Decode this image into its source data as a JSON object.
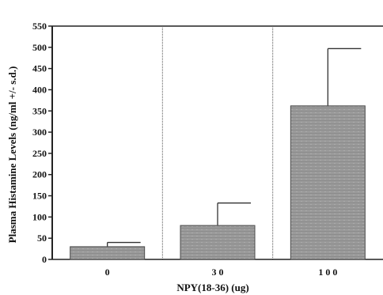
{
  "chart_data": {
    "type": "bar",
    "title": "",
    "categories": [
      "0",
      "3 0",
      "1 0 0"
    ],
    "values": [
      30,
      80,
      362
    ],
    "error_upper": [
      40,
      133,
      497
    ],
    "xlabel": "NPY(18-36)  (ug)",
    "ylabel": "Plasma  Histamine  Levels  (ng/ml  +/-  s.d.)",
    "ylim": [
      0,
      550
    ],
    "yticks": [
      0,
      50,
      100,
      150,
      200,
      250,
      300,
      350,
      400,
      450,
      500,
      550
    ],
    "grid": false,
    "legend": "none",
    "colors": {
      "bar_fill": "#9a9a9a",
      "bar_stroke": "#4a4a4a",
      "axis": "#222222",
      "divider": "#555555"
    }
  }
}
